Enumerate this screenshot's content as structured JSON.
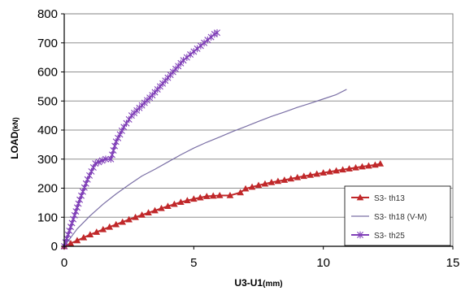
{
  "chart_data": {
    "type": "line",
    "xlabel_main": "U3-U1",
    "xlabel_unit": "(mm)",
    "ylabel_main": "LOAD",
    "ylabel_unit": "(kN)",
    "xlim": [
      0,
      15
    ],
    "ylim": [
      0,
      800
    ],
    "xticks": [
      0,
      5,
      10,
      15
    ],
    "yticks": [
      0,
      100,
      200,
      300,
      400,
      500,
      600,
      700,
      800
    ],
    "grid": "horizontal",
    "legend_position": "bottom-right",
    "series": [
      {
        "name": "S3- th13",
        "color": "#c0282a",
        "marker": "triangle",
        "points": [
          [
            0,
            0
          ],
          [
            0.5,
            20
          ],
          [
            1,
            40
          ],
          [
            1.5,
            58
          ],
          [
            2,
            75
          ],
          [
            2.5,
            92
          ],
          [
            3,
            108
          ],
          [
            3.5,
            123
          ],
          [
            4,
            138
          ],
          [
            4.5,
            152
          ],
          [
            5,
            163
          ],
          [
            5.5,
            172
          ],
          [
            6,
            175
          ],
          [
            6.4,
            175
          ],
          [
            6.8,
            185
          ],
          [
            7,
            198
          ],
          [
            7.5,
            210
          ],
          [
            8,
            220
          ],
          [
            8.5,
            228
          ],
          [
            9,
            237
          ],
          [
            9.5,
            245
          ],
          [
            10,
            253
          ],
          [
            10.5,
            260
          ],
          [
            11,
            267
          ],
          [
            11.5,
            274
          ],
          [
            12,
            280
          ],
          [
            12.2,
            284
          ]
        ]
      },
      {
        "name": "S3- th18 (V-M)",
        "color": "#7a6fa5",
        "marker": "none",
        "points": [
          [
            0,
            0
          ],
          [
            0.5,
            60
          ],
          [
            1,
            105
          ],
          [
            1.5,
            145
          ],
          [
            2,
            180
          ],
          [
            2.5,
            212
          ],
          [
            3,
            242
          ],
          [
            3.5,
            265
          ],
          [
            4,
            290
          ],
          [
            4.5,
            315
          ],
          [
            5,
            338
          ],
          [
            5.5,
            358
          ],
          [
            6,
            376
          ],
          [
            6.5,
            395
          ],
          [
            7,
            412
          ],
          [
            7.5,
            430
          ],
          [
            8,
            447
          ],
          [
            8.5,
            462
          ],
          [
            9,
            478
          ],
          [
            9.5,
            492
          ],
          [
            10,
            507
          ],
          [
            10.5,
            522
          ],
          [
            10.9,
            540
          ]
        ]
      },
      {
        "name": "S3- th25",
        "color": "#8040b8",
        "marker": "star",
        "points": [
          [
            0,
            0
          ],
          [
            0.3,
            80
          ],
          [
            0.6,
            160
          ],
          [
            0.9,
            230
          ],
          [
            1.2,
            285
          ],
          [
            1.6,
            300
          ],
          [
            1.8,
            300
          ],
          [
            2,
            360
          ],
          [
            2.3,
            410
          ],
          [
            2.6,
            450
          ],
          [
            3,
            485
          ],
          [
            3.4,
            520
          ],
          [
            3.8,
            560
          ],
          [
            4.2,
            600
          ],
          [
            4.6,
            640
          ],
          [
            5,
            670
          ],
          [
            5.4,
            700
          ],
          [
            5.8,
            730
          ],
          [
            5.9,
            735
          ]
        ]
      }
    ]
  }
}
